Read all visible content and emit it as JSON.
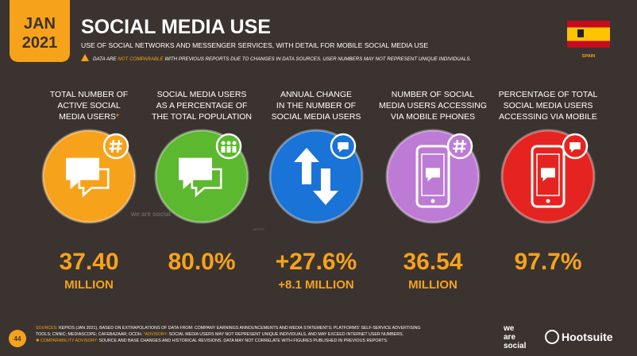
{
  "badge": {
    "month": "JAN",
    "year": "2021"
  },
  "header": {
    "title": "SOCIAL MEDIA USE",
    "subtitle": "USE OF SOCIAL NETWORKS AND MESSENGER SERVICES, WITH DETAIL FOR MOBILE SOCIAL MEDIA USE",
    "warning": [
      {
        "text": "DATA ARE "
      },
      {
        "text": "NOT COMPARABLE",
        "color": "#f7a21b"
      },
      {
        "text": " WITH PREVIOUS REPORTS DUE TO CHANGES IN DATA SOURCES. USER NUMBERS MAY NOT REPRESENT UNIQUE INDIVIDUALS."
      }
    ]
  },
  "country": "SPAIN",
  "stats": [
    {
      "label": [
        "TOTAL NUMBER OF",
        "ACTIVE SOCIAL",
        "MEDIA USERS"
      ],
      "marker": "*",
      "value": "37.40",
      "unit": "MILLION",
      "color": "#f7a21b"
    },
    {
      "label": [
        "SOCIAL MEDIA USERS",
        "AS A PERCENTAGE OF",
        "THE TOTAL POPULATION"
      ],
      "value": "80.0%",
      "color": "#5cb82e"
    },
    {
      "label": [
        "ANNUAL CHANGE",
        "IN THE NUMBER OF",
        "SOCIAL MEDIA USERS"
      ],
      "value": "+27.6%",
      "unit": "+8.1 MILLION",
      "color": "#1a73d6"
    },
    {
      "label": [
        "NUMBER OF SOCIAL",
        "MEDIA USERS ACCESSING",
        "VIA MOBILE PHONES"
      ],
      "value": "36.54",
      "unit": "MILLION",
      "color": "#bd7bd6"
    },
    {
      "label": [
        "PERCENTAGE OF TOTAL",
        "SOCIAL MEDIA USERS",
        "ACCESSING VIA MOBILE"
      ],
      "value": "97.7%",
      "color": "#e52421"
    }
  ],
  "watermarks": [
    "we are social",
    "KEPIOS"
  ],
  "page_number": "44",
  "footer": [
    [
      {
        "text": "SOURCES:",
        "color": "#f7a21b"
      },
      {
        "text": " KEPIOS (JAN 2021), BASED ON EXTRAPOLATIONS OF DATA FROM: COMPANY EARNINGS ANNOUNCEMENTS AND MEDIA STATEMENTS; PLATFORMS' SELF-SERVICE ADVERTISING"
      }
    ],
    [
      {
        "text": "TOOLS; CNNIC; MEDIASCOPE; CAFEBAZAAR; OCDH. "
      },
      {
        "text": "*ADVISORY:",
        "color": "#f7a21b"
      },
      {
        "text": " SOCIAL MEDIA USERS MAY NOT REPRESENT UNIQUE INDIVIDUALS, AND MAY EXCEED INTERNET USER NUMBERS."
      }
    ],
    [
      {
        "text": "✱ COMPARABILITY ADVISORY:",
        "color": "#f7a21b"
      },
      {
        "text": " SOURCE AND BASE CHANGES AND HISTORICAL REVISIONS. DATA MAY NOT CORRELATE WITH FIGURES PUBLISHED IN PREVIOUS REPORTS."
      }
    ]
  ],
  "logos": {
    "we_are_social": [
      "we",
      "are",
      "social"
    ],
    "hootsuite": "Hootsuite"
  }
}
